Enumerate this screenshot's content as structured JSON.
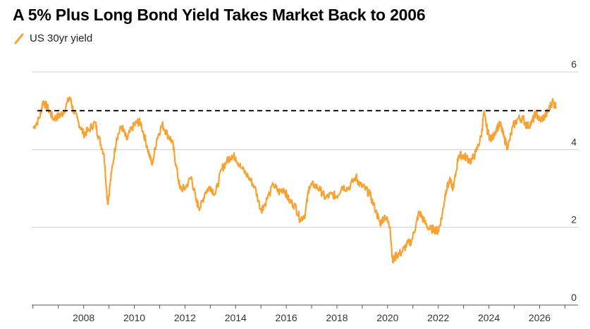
{
  "chart_data": {
    "type": "line",
    "title": "A 5% Plus Long Bond Yield Takes Market Back to 2006",
    "series": [
      {
        "name": "US 30yr yield",
        "color": "#f7a233",
        "points": [
          [
            2006.0,
            4.55
          ],
          [
            2006.25,
            4.8
          ],
          [
            2006.4,
            5.25
          ],
          [
            2006.6,
            5.05
          ],
          [
            2006.8,
            4.8
          ],
          [
            2007.0,
            4.85
          ],
          [
            2007.2,
            4.95
          ],
          [
            2007.45,
            5.35
          ],
          [
            2007.6,
            5.0
          ],
          [
            2007.8,
            4.7
          ],
          [
            2008.0,
            4.4
          ],
          [
            2008.2,
            4.5
          ],
          [
            2008.45,
            4.7
          ],
          [
            2008.6,
            4.3
          ],
          [
            2008.8,
            3.9
          ],
          [
            2008.95,
            2.6
          ],
          [
            2009.1,
            3.4
          ],
          [
            2009.3,
            4.3
          ],
          [
            2009.5,
            4.6
          ],
          [
            2009.7,
            4.25
          ],
          [
            2009.9,
            4.55
          ],
          [
            2010.1,
            4.7
          ],
          [
            2010.25,
            4.7
          ],
          [
            2010.5,
            4.1
          ],
          [
            2010.7,
            3.6
          ],
          [
            2010.9,
            4.3
          ],
          [
            2011.1,
            4.65
          ],
          [
            2011.3,
            4.4
          ],
          [
            2011.5,
            4.2
          ],
          [
            2011.65,
            3.6
          ],
          [
            2011.8,
            3.0
          ],
          [
            2012.0,
            3.0
          ],
          [
            2012.25,
            3.3
          ],
          [
            2012.45,
            2.65
          ],
          [
            2012.6,
            2.5
          ],
          [
            2012.8,
            2.9
          ],
          [
            2013.0,
            3.05
          ],
          [
            2013.2,
            2.85
          ],
          [
            2013.45,
            3.5
          ],
          [
            2013.65,
            3.7
          ],
          [
            2013.85,
            3.85
          ],
          [
            2014.0,
            3.8
          ],
          [
            2014.2,
            3.55
          ],
          [
            2014.5,
            3.3
          ],
          [
            2014.75,
            3.05
          ],
          [
            2015.0,
            2.45
          ],
          [
            2015.15,
            2.6
          ],
          [
            2015.5,
            3.1
          ],
          [
            2015.7,
            2.9
          ],
          [
            2015.9,
            3.0
          ],
          [
            2016.1,
            2.7
          ],
          [
            2016.35,
            2.55
          ],
          [
            2016.55,
            2.2
          ],
          [
            2016.75,
            2.35
          ],
          [
            2016.9,
            3.05
          ],
          [
            2017.1,
            3.1
          ],
          [
            2017.35,
            2.95
          ],
          [
            2017.55,
            2.75
          ],
          [
            2017.8,
            2.85
          ],
          [
            2018.0,
            2.8
          ],
          [
            2018.2,
            3.05
          ],
          [
            2018.45,
            3.0
          ],
          [
            2018.75,
            3.3
          ],
          [
            2018.9,
            3.1
          ],
          [
            2019.1,
            3.0
          ],
          [
            2019.3,
            2.85
          ],
          [
            2019.55,
            2.4
          ],
          [
            2019.7,
            2.1
          ],
          [
            2019.9,
            2.3
          ],
          [
            2020.1,
            2.0
          ],
          [
            2020.2,
            1.1
          ],
          [
            2020.35,
            1.3
          ],
          [
            2020.55,
            1.35
          ],
          [
            2020.75,
            1.55
          ],
          [
            2020.95,
            1.65
          ],
          [
            2021.15,
            2.15
          ],
          [
            2021.25,
            2.4
          ],
          [
            2021.45,
            2.15
          ],
          [
            2021.65,
            1.95
          ],
          [
            2021.85,
            1.95
          ],
          [
            2022.0,
            1.9
          ],
          [
            2022.15,
            2.3
          ],
          [
            2022.3,
            2.95
          ],
          [
            2022.45,
            3.2
          ],
          [
            2022.6,
            3.0
          ],
          [
            2022.8,
            3.85
          ],
          [
            2022.95,
            3.85
          ],
          [
            2023.1,
            3.8
          ],
          [
            2023.3,
            3.7
          ],
          [
            2023.5,
            3.95
          ],
          [
            2023.7,
            4.35
          ],
          [
            2023.8,
            4.95
          ],
          [
            2023.95,
            4.45
          ],
          [
            2024.1,
            4.25
          ],
          [
            2024.3,
            4.55
          ],
          [
            2024.45,
            4.65
          ],
          [
            2024.6,
            4.3
          ],
          [
            2024.75,
            4.05
          ],
          [
            2024.95,
            4.6
          ],
          [
            2025.15,
            4.8
          ],
          [
            2025.35,
            4.8
          ],
          [
            2025.5,
            4.6
          ],
          [
            2025.7,
            4.7
          ],
          [
            2025.85,
            4.95
          ],
          [
            2026.0,
            4.75
          ],
          [
            2026.2,
            4.85
          ],
          [
            2026.35,
            5.0
          ],
          [
            2026.5,
            5.25
          ],
          [
            2026.65,
            5.1
          ]
        ]
      }
    ],
    "reference_line": {
      "y": 5,
      "style": "dashed",
      "color": "#111111"
    },
    "xlim": [
      2005.95,
      2027.1
    ],
    "ylim": [
      0,
      6
    ],
    "x_ticks": [
      2008,
      2010,
      2012,
      2014,
      2016,
      2018,
      2020,
      2022,
      2024,
      2026
    ],
    "x_tick_labels": [
      "2008",
      "2010",
      "2012",
      "2014",
      "2016",
      "2018",
      "2020",
      "2022",
      "2024",
      "2026"
    ],
    "y_ticks": [
      0,
      2,
      4,
      6
    ],
    "y_tick_labels": [
      "0",
      "2",
      "4",
      "6"
    ],
    "grid": "horizontal",
    "y_axis_position": "right",
    "legend_position": "top-left",
    "xlabel": "",
    "ylabel": ""
  }
}
